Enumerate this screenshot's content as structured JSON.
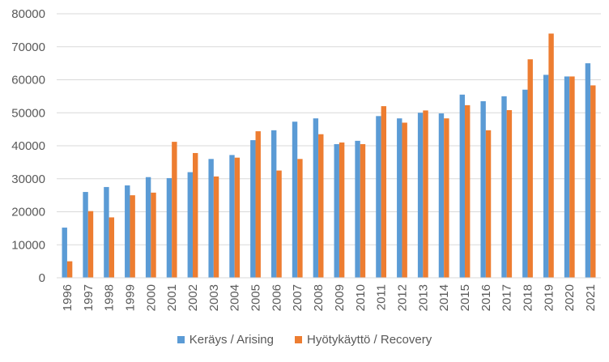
{
  "chart_data": {
    "type": "bar",
    "title": "",
    "xlabel": "",
    "ylabel": "",
    "ylim": [
      0,
      80000
    ],
    "yticks": [
      0,
      10000,
      20000,
      30000,
      40000,
      50000,
      60000,
      70000,
      80000
    ],
    "grid": true,
    "legend_position": "bottom",
    "categories": [
      "1996",
      "1997",
      "1998",
      "1999",
      "2000",
      "2001",
      "2002",
      "2003",
      "2004",
      "2005",
      "2006",
      "2007",
      "2008",
      "2009",
      "2010",
      "2011",
      "2012",
      "2013",
      "2014",
      "2015",
      "2016",
      "2017",
      "2018",
      "2019",
      "2020",
      "2021"
    ],
    "series": [
      {
        "name": "Keräys / Arising",
        "color": "#5B9BD5",
        "values": [
          15200,
          26000,
          27500,
          28000,
          30500,
          30200,
          32000,
          36000,
          37200,
          41700,
          44700,
          47300,
          48300,
          40500,
          41500,
          49000,
          48300,
          50000,
          49800,
          55500,
          53500,
          55000,
          57000,
          61500,
          61000,
          65000
        ]
      },
      {
        "name": "Hyötykäyttö / Recovery",
        "color": "#ED7D31",
        "values": [
          5000,
          20200,
          18300,
          25000,
          25800,
          41200,
          37800,
          30700,
          36400,
          44400,
          32500,
          36000,
          43500,
          41000,
          40500,
          52000,
          47000,
          50700,
          48300,
          52300,
          44700,
          50800,
          66200,
          74000,
          61000,
          58300
        ]
      }
    ]
  }
}
